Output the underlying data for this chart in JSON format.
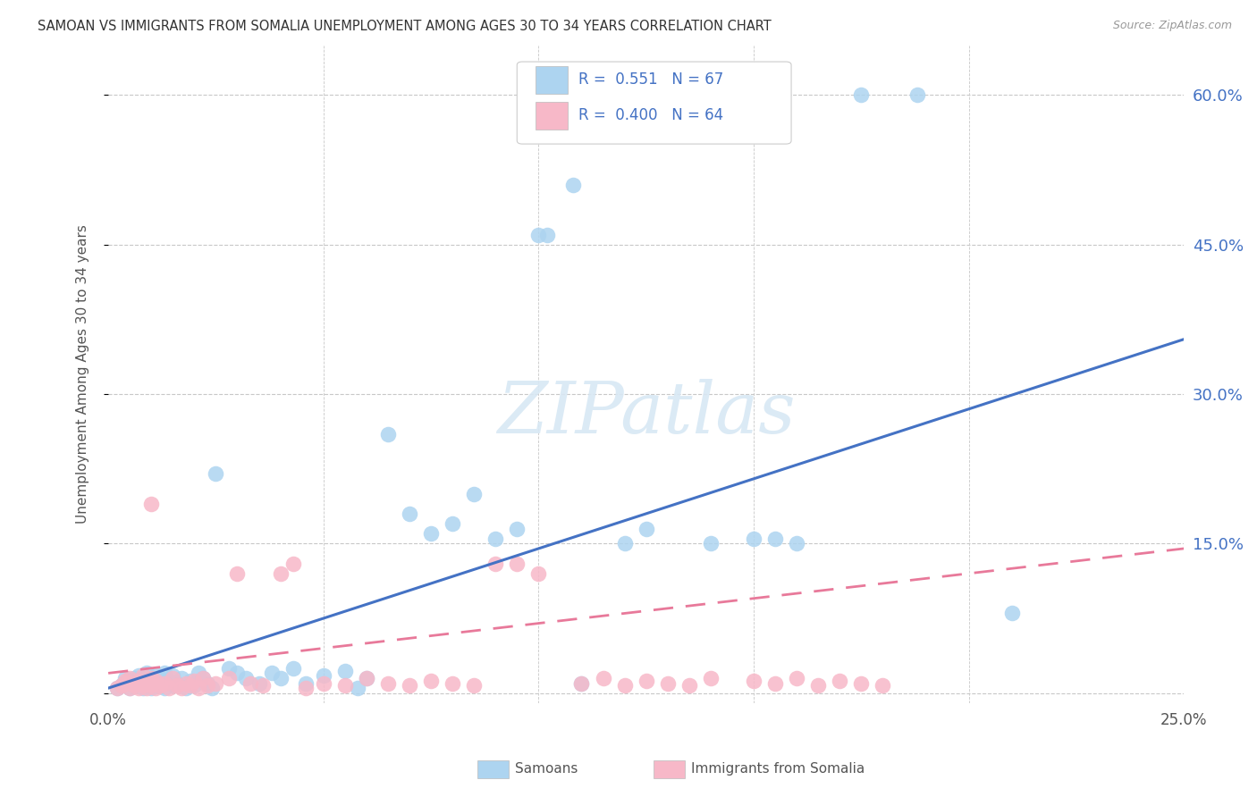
{
  "title": "SAMOAN VS IMMIGRANTS FROM SOMALIA UNEMPLOYMENT AMONG AGES 30 TO 34 YEARS CORRELATION CHART",
  "source": "Source: ZipAtlas.com",
  "ylabel": "Unemployment Among Ages 30 to 34 years",
  "watermark": "ZIPatlas",
  "blue_label": "Samoans",
  "pink_label": "Immigrants from Somalia",
  "blue_R": "0.551",
  "blue_N": "67",
  "pink_R": "0.400",
  "pink_N": "64",
  "blue_color": "#ADD4F0",
  "pink_color": "#F7B8C8",
  "blue_line_color": "#4472C4",
  "pink_line_color": "#E8799A",
  "grid_color": "#C8C8C8",
  "background_color": "#FFFFFF",
  "text_color": "#555555",
  "title_color": "#333333",
  "right_axis_color": "#4472C4",
  "xlim": [
    0.0,
    0.25
  ],
  "ylim": [
    -0.01,
    0.65
  ],
  "yticks": [
    0.0,
    0.15,
    0.3,
    0.45,
    0.6
  ],
  "ytick_labels": [
    "",
    "15.0%",
    "30.0%",
    "45.0%",
    "60.0%"
  ],
  "blue_line_x": [
    0.0,
    0.25
  ],
  "blue_line_y": [
    0.005,
    0.355
  ],
  "pink_line_x": [
    0.0,
    0.25
  ],
  "pink_line_y": [
    0.02,
    0.145
  ]
}
